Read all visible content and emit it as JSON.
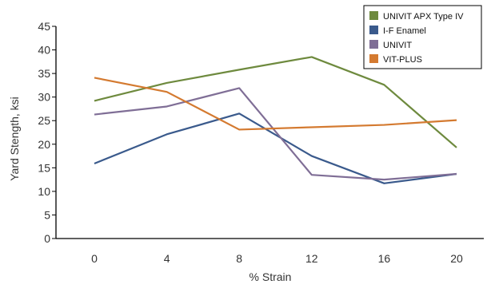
{
  "chart_data": {
    "type": "line",
    "xlabel": "% Strain",
    "ylabel": "Yard Stength, ksi",
    "x": [
      0,
      4,
      8,
      12,
      16,
      20
    ],
    "x_tick_labels": [
      "0",
      "4",
      "8",
      "12",
      "16",
      "20"
    ],
    "ylim": [
      0,
      45
    ],
    "y_ticks": [
      0,
      5,
      10,
      15,
      20,
      25,
      30,
      35,
      40,
      45
    ],
    "y_tick_labels": [
      "0",
      "5",
      "10",
      "15",
      "20",
      "25",
      "30",
      "35",
      "40",
      "45"
    ],
    "grid": false,
    "legend_position": "top-right",
    "series": [
      {
        "name": "UNIVIT APX Type IV",
        "color": "#6e8a3e",
        "values": [
          29.2,
          33.0,
          35.8,
          38.5,
          32.6,
          19.3
        ]
      },
      {
        "name": "I-F Enamel",
        "color": "#3a5a8c",
        "values": [
          15.9,
          22.1,
          26.5,
          17.5,
          11.7,
          13.7
        ]
      },
      {
        "name": "UNIVIT",
        "color": "#7f6e96",
        "values": [
          26.3,
          28.0,
          31.9,
          13.5,
          12.5,
          13.7
        ]
      },
      {
        "name": "VIT-PLUS",
        "color": "#d47a30",
        "values": [
          34.1,
          31.1,
          23.1,
          23.6,
          24.1,
          25.1
        ]
      }
    ]
  }
}
